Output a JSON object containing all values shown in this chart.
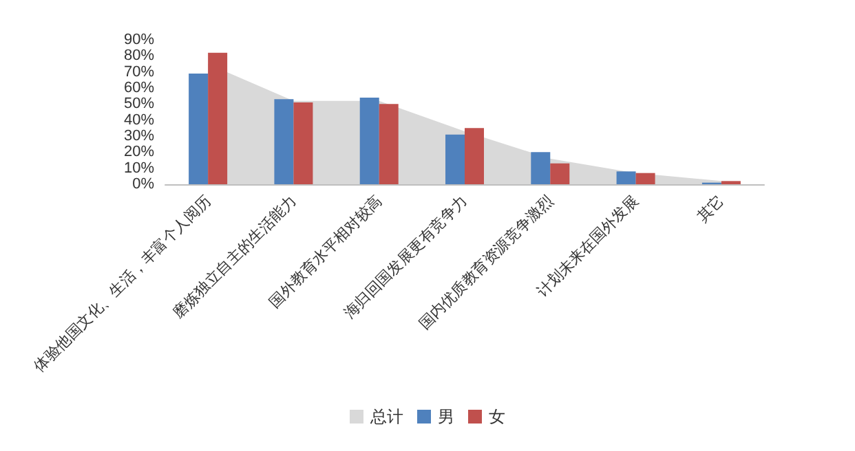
{
  "chart_data": {
    "type": "bar",
    "categories": [
      "体验他国文化、生活，丰富个人阅历",
      "磨炼独立自主的生活能力",
      "国外教育水平相对较高",
      "海归回国发展更有竞争力",
      "国内优质教育资源竞争激烈",
      "计划未来在国外发展",
      "其它"
    ],
    "series": [
      {
        "name": "总计",
        "type": "area",
        "color": "#d9d9d9",
        "values": [
          75,
          52,
          52,
          33,
          16,
          7,
          2
        ]
      },
      {
        "name": "男",
        "color": "#4f81bd",
        "values": [
          69,
          53,
          54,
          31,
          20,
          8,
          1
        ]
      },
      {
        "name": "女",
        "color": "#c0504d",
        "values": [
          82,
          51,
          50,
          35,
          13,
          7,
          2
        ]
      }
    ],
    "ylim": [
      0,
      90
    ],
    "yticks": [
      {
        "value": 0,
        "label": "0%"
      },
      {
        "value": 10,
        "label": "10%"
      },
      {
        "value": 20,
        "label": "20%"
      },
      {
        "value": 30,
        "label": "30%"
      },
      {
        "value": 40,
        "label": "40%"
      },
      {
        "value": 50,
        "label": "50%"
      },
      {
        "value": 60,
        "label": "60%"
      },
      {
        "value": 70,
        "label": "70%"
      },
      {
        "value": 80,
        "label": "80%"
      },
      {
        "value": 90,
        "label": "90%"
      }
    ],
    "grid": false,
    "legend": "bottom"
  }
}
